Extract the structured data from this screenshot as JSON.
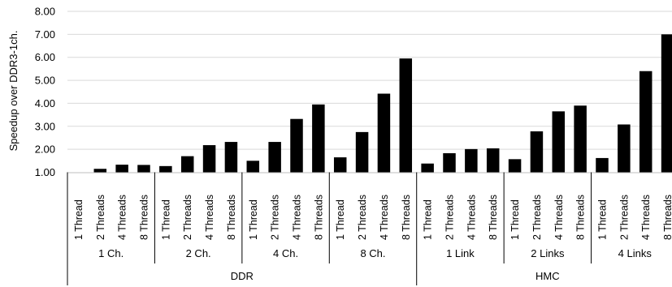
{
  "chart_data": {
    "type": "bar",
    "ylabel": "Speedup over DDR3-1ch.",
    "ylim": [
      1.0,
      8.0
    ],
    "yticks": [
      "1.00",
      "2.00",
      "3.00",
      "4.00",
      "5.00",
      "6.00",
      "7.00",
      "8.00"
    ],
    "grid": true,
    "bar_color": "#000000",
    "categories": [
      "1 Thread",
      "2 Threads",
      "4 Threads",
      "8 Threads",
      "1 Thread",
      "2 Threads",
      "4 Threads",
      "8 Threads",
      "1 Thread",
      "2 Threads",
      "4 Threads",
      "8 Threads",
      "1 Thread",
      "2 Threads",
      "4 Threads",
      "8 Threads",
      "1 Thread",
      "2 Threads",
      "4 Threads",
      "8 Threads",
      "1 Thread",
      "2 Threads",
      "4 Threads",
      "8 Threads",
      "1 Thread",
      "2 Threads",
      "4 Threads",
      "8 Threads"
    ],
    "values": [
      1.0,
      1.15,
      1.33,
      1.32,
      1.27,
      1.7,
      2.18,
      2.32,
      1.5,
      2.32,
      3.32,
      3.95,
      1.65,
      2.75,
      4.42,
      5.95,
      1.38,
      1.83,
      2.01,
      2.04,
      1.57,
      2.78,
      3.65,
      3.9,
      1.62,
      3.08,
      5.4,
      7.0
    ],
    "subgroups": [
      {
        "label": "1 Ch.",
        "count": 4
      },
      {
        "label": "2 Ch.",
        "count": 4
      },
      {
        "label": "4 Ch.",
        "count": 4
      },
      {
        "label": "8 Ch.",
        "count": 4
      },
      {
        "label": "1 Link",
        "count": 4
      },
      {
        "label": "2 Links",
        "count": 4
      },
      {
        "label": "4 Links",
        "count": 4
      }
    ],
    "groups": [
      {
        "label": "DDR",
        "count": 16
      },
      {
        "label": "HMC",
        "count": 12
      }
    ]
  }
}
